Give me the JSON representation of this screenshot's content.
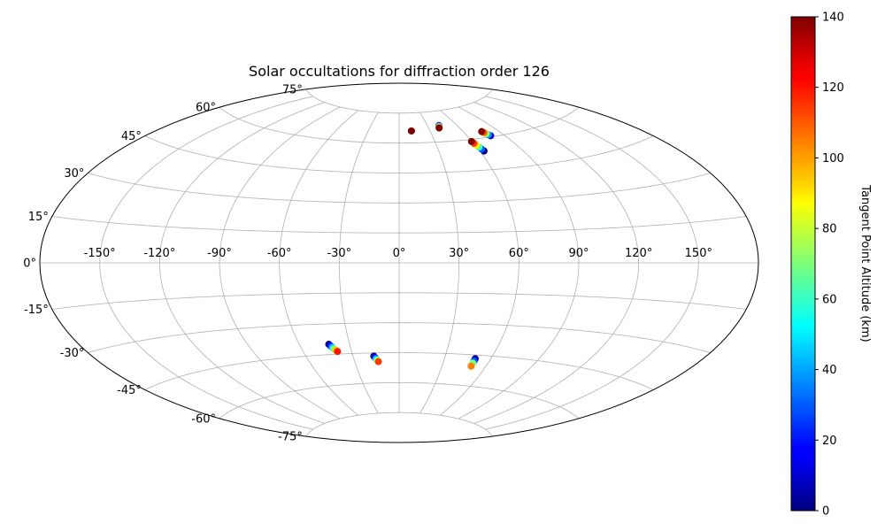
{
  "chart_data": {
    "type": "scatter",
    "projection": "aitoff",
    "title": "Solar occultations for diffraction order 126",
    "lon_ticks": [
      "-150°",
      "-120°",
      "-90°",
      "-60°",
      "-30°",
      "0°",
      "30°",
      "60°",
      "90°",
      "120°",
      "150°"
    ],
    "lon_tick_values": [
      -150,
      -120,
      -90,
      -60,
      -30,
      0,
      30,
      60,
      90,
      120,
      150
    ],
    "lat_ticks": [
      "-75°",
      "-60°",
      "-45°",
      "-30°",
      "-15°",
      "0°",
      "15°",
      "30°",
      "45°",
      "60°",
      "75°"
    ],
    "lat_tick_values": [
      -75,
      -60,
      -45,
      -30,
      -15,
      0,
      15,
      30,
      45,
      60,
      75
    ],
    "grid": true,
    "colorbar": {
      "label": "Tangent Point Altitude (km)",
      "range": [
        0,
        140
      ],
      "ticks": [
        "0",
        "20",
        "40",
        "60",
        "80",
        "100",
        "120",
        "140"
      ],
      "tick_values": [
        0,
        20,
        40,
        60,
        80,
        100,
        120,
        140
      ],
      "colormap": "jet"
    },
    "groups": [
      {
        "lon": [
          12,
          12,
          12
        ],
        "lat": [
          66,
          66,
          66
        ],
        "alt": [
          0,
          70,
          140
        ]
      },
      {
        "lon": [
          42,
          41.5,
          41,
          40.5
        ],
        "lat": [
          68,
          67.6,
          67.2,
          66.8
        ],
        "alt": [
          20,
          60,
          100,
          140
        ]
      },
      {
        "lon": [
          63,
          62.3,
          61.6,
          60.9,
          60.2,
          59.5
        ],
        "lat": [
          54,
          55,
          56,
          57,
          58,
          59
        ],
        "alt": [
          0,
          30,
          60,
          90,
          115,
          140
        ]
      },
      {
        "lon": [
          79,
          78.2,
          77.4,
          76.6,
          75.8
        ],
        "lat": [
          60.5,
          61.1,
          61.7,
          62.3,
          62.9
        ],
        "alt": [
          10,
          40,
          75,
          110,
          140
        ]
      },
      {
        "lon": [
          -42.5,
          -41.8,
          -41.1,
          -40.4,
          -39.6,
          -38.8
        ],
        "lat": [
          -40.0,
          -40.8,
          -41.6,
          -42.3,
          -43.0,
          -43.7
        ],
        "alt": [
          0,
          20,
          45,
          70,
          95,
          120
        ]
      },
      {
        "lon": [
          -16.5,
          -15.9,
          -15.3,
          -14.7,
          -14.1
        ],
        "lat": [
          -46.6,
          -47.3,
          -48.0,
          -48.7,
          -49.4
        ],
        "alt": [
          0,
          20,
          45,
          80,
          115
        ]
      },
      {
        "lon": [
          50,
          50,
          50,
          50,
          50
        ],
        "lat": [
          -46.8,
          -47.4,
          -48.0,
          -49.0,
          -50.5
        ],
        "alt": [
          0,
          10,
          30,
          70,
          105
        ]
      }
    ]
  }
}
